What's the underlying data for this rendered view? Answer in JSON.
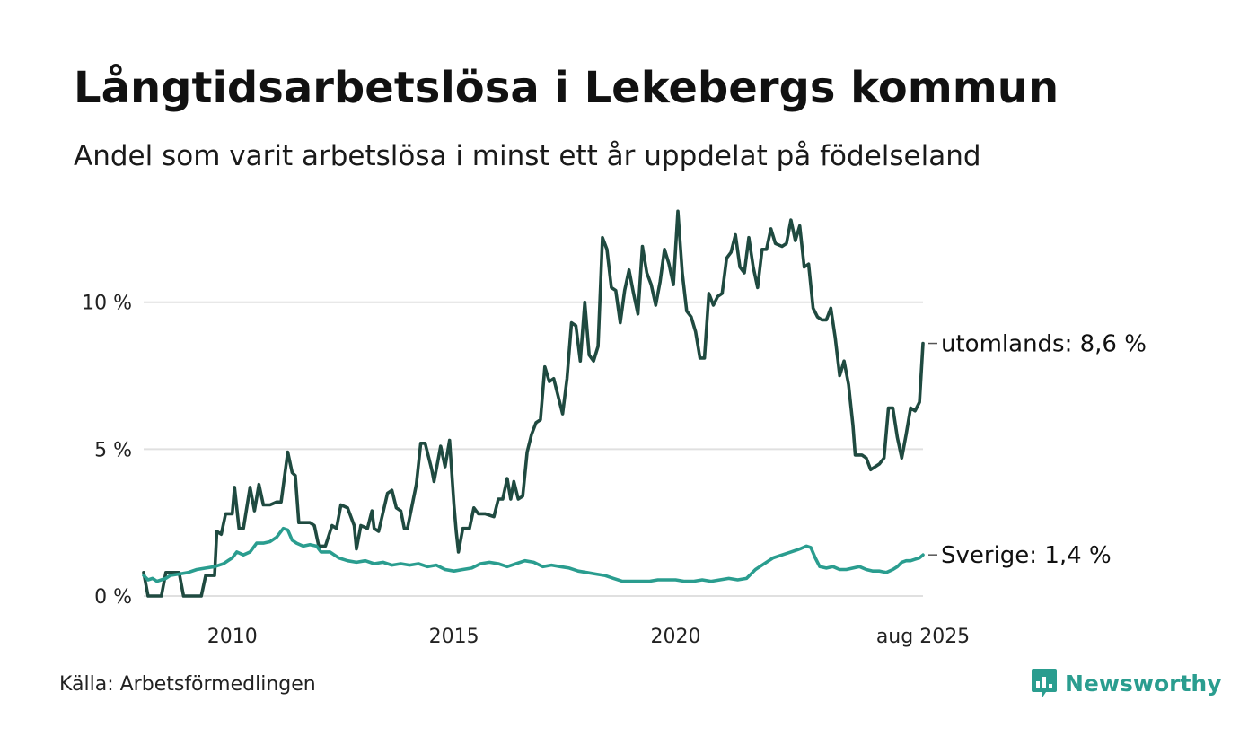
{
  "header": {
    "title": "Långtidsarbetslösa i Lekebergs kommun",
    "subtitle": "Andel som varit arbetslösa i minst ett år uppdelat på födelseland"
  },
  "footer": {
    "source": "Källa: Arbetsförmedlingen",
    "brand": "Newsworthy",
    "brand_color": "#2a9d8f",
    "brand_icon": "bar-chart-speech-bubble-icon"
  },
  "chart_data": {
    "type": "line",
    "title": "Långtidsarbetslösa i Lekebergs kommun",
    "subtitle": "Andel som varit arbetslösa i minst ett år uppdelat på födelseland",
    "x_ticks": [
      {
        "value": 2010,
        "label": "2010"
      },
      {
        "value": 2015,
        "label": "2015"
      },
      {
        "value": 2020,
        "label": "2020"
      },
      {
        "value": 2025.58,
        "label": "aug 2025"
      }
    ],
    "y_ticks": [
      {
        "value": 0,
        "label": "0 %"
      },
      {
        "value": 5,
        "label": "5 %"
      },
      {
        "value": 10,
        "label": "10 %"
      }
    ],
    "xlim": [
      2008.0,
      2025.58
    ],
    "ylim": [
      0,
      13.2
    ],
    "grid": "horizontal",
    "series": [
      {
        "label": "utomlands: 8,6 %",
        "color": "#1f4a40",
        "points": [
          [
            2008.0,
            0.8
          ],
          [
            2008.1,
            0.0
          ],
          [
            2008.4,
            0.0
          ],
          [
            2008.5,
            0.8
          ],
          [
            2008.8,
            0.8
          ],
          [
            2008.9,
            0.0
          ],
          [
            2009.3,
            0.0
          ],
          [
            2009.4,
            0.7
          ],
          [
            2009.6,
            0.7
          ],
          [
            2009.65,
            2.2
          ],
          [
            2009.75,
            2.1
          ],
          [
            2009.85,
            2.8
          ],
          [
            2010.0,
            2.8
          ],
          [
            2010.05,
            3.7
          ],
          [
            2010.15,
            2.3
          ],
          [
            2010.25,
            2.3
          ],
          [
            2010.4,
            3.7
          ],
          [
            2010.5,
            2.9
          ],
          [
            2010.6,
            3.8
          ],
          [
            2010.7,
            3.1
          ],
          [
            2010.85,
            3.1
          ],
          [
            2011.0,
            3.2
          ],
          [
            2011.1,
            3.2
          ],
          [
            2011.25,
            4.9
          ],
          [
            2011.35,
            4.2
          ],
          [
            2011.42,
            4.1
          ],
          [
            2011.5,
            2.5
          ],
          [
            2011.75,
            2.5
          ],
          [
            2011.85,
            2.4
          ],
          [
            2011.95,
            1.7
          ],
          [
            2012.1,
            1.7
          ],
          [
            2012.25,
            2.4
          ],
          [
            2012.35,
            2.3
          ],
          [
            2012.45,
            3.1
          ],
          [
            2012.6,
            3.0
          ],
          [
            2012.75,
            2.4
          ],
          [
            2012.8,
            1.6
          ],
          [
            2012.9,
            2.4
          ],
          [
            2013.05,
            2.3
          ],
          [
            2013.15,
            2.9
          ],
          [
            2013.2,
            2.3
          ],
          [
            2013.3,
            2.2
          ],
          [
            2013.5,
            3.5
          ],
          [
            2013.6,
            3.6
          ],
          [
            2013.7,
            3.0
          ],
          [
            2013.8,
            2.9
          ],
          [
            2013.88,
            2.3
          ],
          [
            2013.95,
            2.3
          ],
          [
            2014.15,
            3.8
          ],
          [
            2014.25,
            5.2
          ],
          [
            2014.35,
            5.2
          ],
          [
            2014.5,
            4.3
          ],
          [
            2014.55,
            3.9
          ],
          [
            2014.7,
            5.1
          ],
          [
            2014.8,
            4.4
          ],
          [
            2014.9,
            5.3
          ],
          [
            2015.0,
            3.1
          ],
          [
            2015.05,
            2.2
          ],
          [
            2015.1,
            1.5
          ],
          [
            2015.2,
            2.3
          ],
          [
            2015.35,
            2.3
          ],
          [
            2015.45,
            3.0
          ],
          [
            2015.55,
            2.8
          ],
          [
            2015.7,
            2.8
          ],
          [
            2015.9,
            2.7
          ],
          [
            2016.0,
            3.3
          ],
          [
            2016.1,
            3.3
          ],
          [
            2016.2,
            4.0
          ],
          [
            2016.28,
            3.3
          ],
          [
            2016.35,
            3.9
          ],
          [
            2016.45,
            3.3
          ],
          [
            2016.55,
            3.4
          ],
          [
            2016.65,
            4.9
          ],
          [
            2016.75,
            5.5
          ],
          [
            2016.85,
            5.9
          ],
          [
            2016.95,
            6.0
          ],
          [
            2017.05,
            7.8
          ],
          [
            2017.15,
            7.3
          ],
          [
            2017.25,
            7.4
          ],
          [
            2017.45,
            6.2
          ],
          [
            2017.55,
            7.4
          ],
          [
            2017.65,
            9.3
          ],
          [
            2017.75,
            9.2
          ],
          [
            2017.85,
            8.0
          ],
          [
            2017.95,
            10.0
          ],
          [
            2018.05,
            8.2
          ],
          [
            2018.15,
            8.0
          ],
          [
            2018.25,
            8.5
          ],
          [
            2018.35,
            12.2
          ],
          [
            2018.45,
            11.8
          ],
          [
            2018.55,
            10.5
          ],
          [
            2018.65,
            10.4
          ],
          [
            2018.75,
            9.3
          ],
          [
            2018.85,
            10.4
          ],
          [
            2018.95,
            11.1
          ],
          [
            2019.05,
            10.3
          ],
          [
            2019.15,
            9.6
          ],
          [
            2019.25,
            11.9
          ],
          [
            2019.35,
            11.0
          ],
          [
            2019.45,
            10.6
          ],
          [
            2019.55,
            9.9
          ],
          [
            2019.65,
            10.7
          ],
          [
            2019.75,
            11.8
          ],
          [
            2019.85,
            11.3
          ],
          [
            2019.95,
            10.6
          ],
          [
            2020.05,
            13.1
          ],
          [
            2020.15,
            11.0
          ],
          [
            2020.25,
            9.7
          ],
          [
            2020.35,
            9.5
          ],
          [
            2020.45,
            9.0
          ],
          [
            2020.55,
            8.1
          ],
          [
            2020.65,
            8.1
          ],
          [
            2020.75,
            10.3
          ],
          [
            2020.85,
            9.9
          ],
          [
            2020.95,
            10.2
          ],
          [
            2021.05,
            10.3
          ],
          [
            2021.15,
            11.5
          ],
          [
            2021.25,
            11.7
          ],
          [
            2021.35,
            12.3
          ],
          [
            2021.45,
            11.2
          ],
          [
            2021.55,
            11.0
          ],
          [
            2021.65,
            12.2
          ],
          [
            2021.75,
            11.2
          ],
          [
            2021.85,
            10.5
          ],
          [
            2021.95,
            11.8
          ],
          [
            2022.05,
            11.8
          ],
          [
            2022.15,
            12.5
          ],
          [
            2022.25,
            12.0
          ],
          [
            2022.4,
            11.9
          ],
          [
            2022.5,
            12.0
          ],
          [
            2022.6,
            12.8
          ],
          [
            2022.7,
            12.1
          ],
          [
            2022.8,
            12.6
          ],
          [
            2022.9,
            11.2
          ],
          [
            2023.0,
            11.3
          ],
          [
            2023.1,
            9.8
          ],
          [
            2023.2,
            9.5
          ],
          [
            2023.3,
            9.4
          ],
          [
            2023.4,
            9.4
          ],
          [
            2023.5,
            9.8
          ],
          [
            2023.6,
            8.8
          ],
          [
            2023.7,
            7.5
          ],
          [
            2023.8,
            8.0
          ],
          [
            2023.9,
            7.2
          ],
          [
            2024.0,
            5.8
          ],
          [
            2024.05,
            4.8
          ],
          [
            2024.2,
            4.8
          ],
          [
            2024.3,
            4.7
          ],
          [
            2024.4,
            4.3
          ],
          [
            2024.5,
            4.4
          ],
          [
            2024.6,
            4.5
          ],
          [
            2024.7,
            4.7
          ],
          [
            2024.8,
            6.4
          ],
          [
            2024.9,
            6.4
          ],
          [
            2025.0,
            5.4
          ],
          [
            2025.1,
            4.7
          ],
          [
            2025.2,
            5.5
          ],
          [
            2025.3,
            6.4
          ],
          [
            2025.4,
            6.3
          ],
          [
            2025.5,
            6.6
          ],
          [
            2025.58,
            8.6
          ]
        ]
      },
      {
        "label": "Sverige: 1,4 %",
        "color": "#2a9d8f",
        "points": [
          [
            2008.0,
            0.7
          ],
          [
            2008.1,
            0.55
          ],
          [
            2008.2,
            0.6
          ],
          [
            2008.3,
            0.5
          ],
          [
            2008.4,
            0.55
          ],
          [
            2008.5,
            0.6
          ],
          [
            2008.6,
            0.7
          ],
          [
            2008.8,
            0.75
          ],
          [
            2009.0,
            0.8
          ],
          [
            2009.2,
            0.9
          ],
          [
            2009.4,
            0.95
          ],
          [
            2009.6,
            1.0
          ],
          [
            2009.8,
            1.1
          ],
          [
            2010.0,
            1.3
          ],
          [
            2010.1,
            1.5
          ],
          [
            2010.25,
            1.4
          ],
          [
            2010.4,
            1.5
          ],
          [
            2010.55,
            1.8
          ],
          [
            2010.7,
            1.8
          ],
          [
            2010.85,
            1.85
          ],
          [
            2011.0,
            2.0
          ],
          [
            2011.15,
            2.3
          ],
          [
            2011.25,
            2.25
          ],
          [
            2011.35,
            1.9
          ],
          [
            2011.45,
            1.8
          ],
          [
            2011.6,
            1.7
          ],
          [
            2011.75,
            1.75
          ],
          [
            2011.9,
            1.7
          ],
          [
            2012.0,
            1.5
          ],
          [
            2012.2,
            1.5
          ],
          [
            2012.4,
            1.3
          ],
          [
            2012.6,
            1.2
          ],
          [
            2012.8,
            1.15
          ],
          [
            2013.0,
            1.2
          ],
          [
            2013.2,
            1.1
          ],
          [
            2013.4,
            1.15
          ],
          [
            2013.6,
            1.05
          ],
          [
            2013.8,
            1.1
          ],
          [
            2014.0,
            1.05
          ],
          [
            2014.2,
            1.1
          ],
          [
            2014.4,
            1.0
          ],
          [
            2014.6,
            1.05
          ],
          [
            2014.8,
            0.9
          ],
          [
            2015.0,
            0.85
          ],
          [
            2015.2,
            0.9
          ],
          [
            2015.4,
            0.95
          ],
          [
            2015.6,
            1.1
          ],
          [
            2015.8,
            1.15
          ],
          [
            2016.0,
            1.1
          ],
          [
            2016.2,
            1.0
          ],
          [
            2016.4,
            1.1
          ],
          [
            2016.6,
            1.2
          ],
          [
            2016.8,
            1.15
          ],
          [
            2017.0,
            1.0
          ],
          [
            2017.2,
            1.05
          ],
          [
            2017.4,
            1.0
          ],
          [
            2017.6,
            0.95
          ],
          [
            2017.8,
            0.85
          ],
          [
            2018.0,
            0.8
          ],
          [
            2018.2,
            0.75
          ],
          [
            2018.4,
            0.7
          ],
          [
            2018.6,
            0.6
          ],
          [
            2018.8,
            0.5
          ],
          [
            2019.0,
            0.5
          ],
          [
            2019.2,
            0.5
          ],
          [
            2019.4,
            0.5
          ],
          [
            2019.6,
            0.55
          ],
          [
            2019.8,
            0.55
          ],
          [
            2020.0,
            0.55
          ],
          [
            2020.2,
            0.5
          ],
          [
            2020.4,
            0.5
          ],
          [
            2020.6,
            0.55
          ],
          [
            2020.8,
            0.5
          ],
          [
            2021.0,
            0.55
          ],
          [
            2021.2,
            0.6
          ],
          [
            2021.4,
            0.55
          ],
          [
            2021.6,
            0.6
          ],
          [
            2021.8,
            0.9
          ],
          [
            2022.0,
            1.1
          ],
          [
            2022.2,
            1.3
          ],
          [
            2022.4,
            1.4
          ],
          [
            2022.6,
            1.5
          ],
          [
            2022.8,
            1.6
          ],
          [
            2022.95,
            1.7
          ],
          [
            2023.05,
            1.65
          ],
          [
            2023.15,
            1.3
          ],
          [
            2023.25,
            1.0
          ],
          [
            2023.4,
            0.95
          ],
          [
            2023.55,
            1.0
          ],
          [
            2023.7,
            0.9
          ],
          [
            2023.85,
            0.9
          ],
          [
            2024.0,
            0.95
          ],
          [
            2024.15,
            1.0
          ],
          [
            2024.3,
            0.9
          ],
          [
            2024.45,
            0.85
          ],
          [
            2024.6,
            0.85
          ],
          [
            2024.75,
            0.8
          ],
          [
            2024.9,
            0.9
          ],
          [
            2025.0,
            1.0
          ],
          [
            2025.1,
            1.15
          ],
          [
            2025.2,
            1.2
          ],
          [
            2025.3,
            1.2
          ],
          [
            2025.4,
            1.25
          ],
          [
            2025.5,
            1.3
          ],
          [
            2025.58,
            1.4
          ]
        ]
      }
    ]
  }
}
